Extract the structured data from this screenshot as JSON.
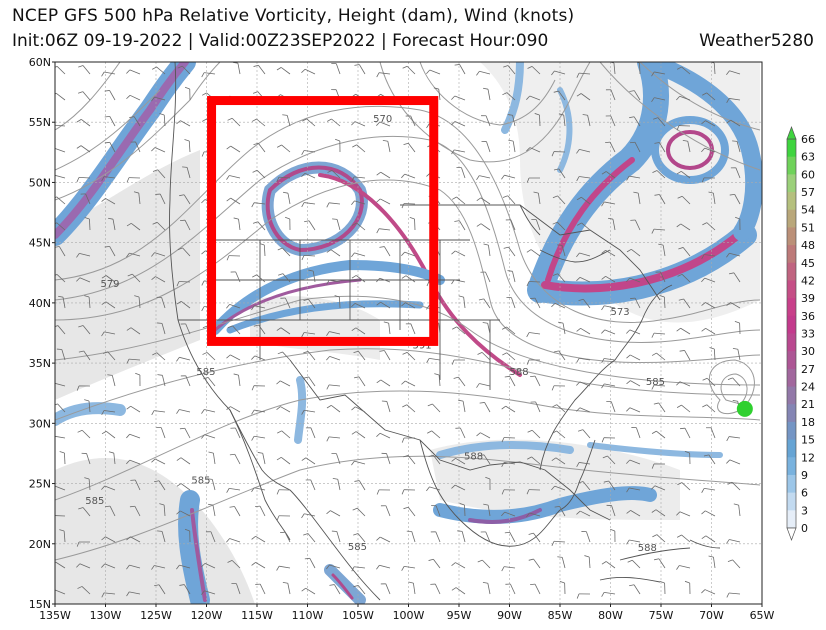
{
  "header": {
    "title": "NCEP GFS 500 hPa Relative Vorticity, Height (dam), Wind (knots)",
    "subtitle": "Init:06Z 09-19-2022 | Valid:00Z23SEP2022 | Forecast Hour:090",
    "brand": "Weather5280"
  },
  "map": {
    "lat_labels": [
      "60N",
      "55N",
      "50N",
      "45N",
      "40N",
      "35N",
      "30N",
      "25N",
      "20N",
      "15N"
    ],
    "lon_labels": [
      "135W",
      "130W",
      "125W",
      "120W",
      "115W",
      "110W",
      "105W",
      "100W",
      "95W",
      "90W",
      "85W",
      "80W",
      "75W",
      "70W",
      "65W"
    ],
    "contour_labels": [
      {
        "text": "579",
        "lon": -130.5,
        "lat": 41.3
      },
      {
        "text": "570",
        "lon": -103.5,
        "lat": 55.0
      },
      {
        "text": "591",
        "lon": -99.6,
        "lat": 36.2
      },
      {
        "text": "588",
        "lon": -90.0,
        "lat": 34.0
      },
      {
        "text": "585",
        "lon": -76.5,
        "lat": 33.2
      },
      {
        "text": "585",
        "lon": -121.0,
        "lat": 34.0
      },
      {
        "text": "588",
        "lon": -94.5,
        "lat": 27.0
      },
      {
        "text": "585",
        "lon": -121.5,
        "lat": 25.0
      },
      {
        "text": "585",
        "lon": -132.0,
        "lat": 23.3
      },
      {
        "text": "588",
        "lon": -77.3,
        "lat": 19.4
      },
      {
        "text": "585",
        "lon": -106.0,
        "lat": 19.5
      },
      {
        "text": "573",
        "lon": -80.0,
        "lat": 39.0
      }
    ],
    "highlight_box": {
      "lon_min": -119.5,
      "lon_max": -97.5,
      "lat_min": 36.8,
      "lat_max": 56.8,
      "color": "#ff0000"
    },
    "storm_center": {
      "lon": -66.7,
      "lat": 31.2,
      "color": "#2fd02f"
    }
  },
  "colorbar": {
    "ticks": [
      "66",
      "63",
      "60",
      "57",
      "54",
      "51",
      "48",
      "45",
      "42",
      "39",
      "36",
      "33",
      "30",
      "27",
      "24",
      "21",
      "18",
      "15",
      "12",
      "9",
      "6",
      "3",
      "0"
    ],
    "colors": [
      "#3fd43f",
      "#6fd25a",
      "#9bd07a",
      "#b5c07e",
      "#b9a77a",
      "#bb9078",
      "#bd7a79",
      "#c06480",
      "#c54e86",
      "#c8408a",
      "#c33a8c",
      "#b9488f",
      "#ad5695",
      "#a1679d",
      "#9278a8",
      "#8485b4",
      "#7495c4",
      "#66a4d4",
      "#79b2de",
      "#9cc6e8",
      "#c2daf0",
      "#e6eef8"
    ]
  }
}
